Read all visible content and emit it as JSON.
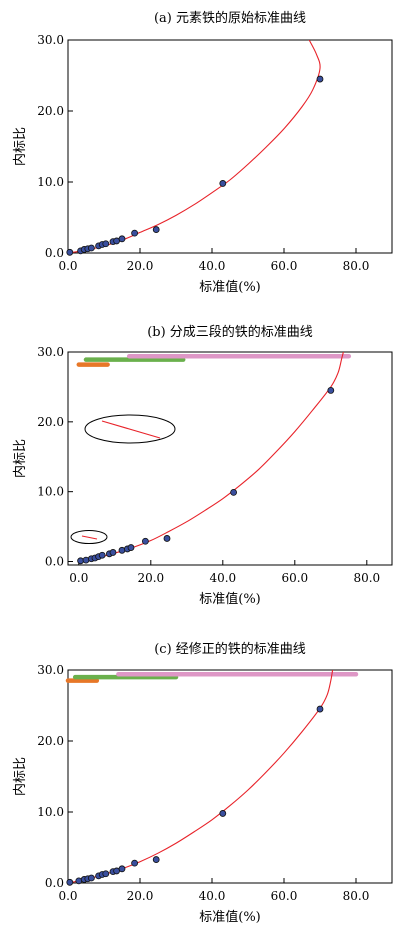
{
  "chart_data": [
    {
      "type": "scatter",
      "title": "(a) 元素铁的原始标准曲线",
      "xlabel": "标准值(%)",
      "ylabel": "内标比",
      "xlim": [
        0,
        90
      ],
      "ylim": [
        0,
        30
      ],
      "x_ticks": [
        "0.0",
        "20.0",
        "40.0",
        "60.0",
        "80.0"
      ],
      "y_ticks": [
        "0.0",
        "10.0",
        "20.0",
        "30.0"
      ],
      "series": [
        {
          "points": [
            [
              0.5,
              0.1
            ],
            [
              3.5,
              0.3
            ],
            [
              4.5,
              0.5
            ],
            [
              5.5,
              0.6
            ],
            [
              6.5,
              0.7
            ],
            [
              8.5,
              1.0
            ],
            [
              9.5,
              1.2
            ],
            [
              10.5,
              1.3
            ],
            [
              12.5,
              1.6
            ],
            [
              13.5,
              1.7
            ],
            [
              15,
              2.0
            ],
            [
              18.5,
              2.8
            ],
            [
              24.5,
              3.3
            ],
            [
              43,
              9.8
            ],
            [
              70,
              24.5
            ]
          ]
        }
      ],
      "fit_curve": [
        [
          0,
          0
        ],
        [
          5,
          0.4
        ],
        [
          10,
          1.0
        ],
        [
          15,
          1.8
        ],
        [
          20,
          2.9
        ],
        [
          25,
          4.0
        ],
        [
          30,
          5.3
        ],
        [
          35,
          6.8
        ],
        [
          40,
          8.5
        ],
        [
          45,
          10.3
        ],
        [
          50,
          12.5
        ],
        [
          55,
          14.9
        ],
        [
          60,
          17.5
        ],
        [
          65,
          20.6
        ],
        [
          68,
          23.0
        ],
        [
          70,
          26.0
        ],
        [
          69,
          28.0
        ],
        [
          67,
          30.0
        ]
      ],
      "highlight_bars": [],
      "annotations": []
    },
    {
      "type": "scatter",
      "title": "(b) 分成三段的铁的标准曲线",
      "xlabel": "标准值(%)",
      "ylabel": "内标比",
      "xlim": [
        -3,
        87
      ],
      "ylim": [
        -0.5,
        30
      ],
      "x_ticks": [
        "0.0",
        "20.0",
        "40.0",
        "60.0",
        "80.0"
      ],
      "y_ticks": [
        "0.0",
        "10.0",
        "20.0",
        "30.0"
      ],
      "series": [
        {
          "points": [
            [
              0.5,
              0.1
            ],
            [
              2,
              0.2
            ],
            [
              3.5,
              0.4
            ],
            [
              4.5,
              0.5
            ],
            [
              5.5,
              0.7
            ],
            [
              6.5,
              0.9
            ],
            [
              8.5,
              1.1
            ],
            [
              9.5,
              1.3
            ],
            [
              12,
              1.6
            ],
            [
              13.5,
              1.8
            ],
            [
              14.5,
              2.0
            ],
            [
              18.5,
              2.9
            ],
            [
              24.5,
              3.3
            ],
            [
              43,
              9.9
            ],
            [
              70,
              24.5
            ]
          ]
        }
      ],
      "fit_curve": [
        [
          0,
          0
        ],
        [
          5,
          0.5
        ],
        [
          10,
          1.2
        ],
        [
          15,
          2.0
        ],
        [
          20,
          3.0
        ],
        [
          25,
          4.3
        ],
        [
          30,
          5.7
        ],
        [
          35,
          7.3
        ],
        [
          40,
          9.0
        ],
        [
          45,
          11.0
        ],
        [
          50,
          13.2
        ],
        [
          55,
          15.8
        ],
        [
          60,
          18.6
        ],
        [
          65,
          21.7
        ],
        [
          70,
          25.0
        ],
        [
          72,
          27.0
        ],
        [
          73,
          29.0
        ],
        [
          73.5,
          30.0
        ]
      ],
      "highlight_bars": [
        {
          "color": "#e77728",
          "from": 0,
          "to": 8,
          "y": 28.2
        },
        {
          "color": "#6ab04c",
          "from": 2,
          "to": 29,
          "y": 28.9
        },
        {
          "color": "#de97c6",
          "from": 14,
          "to": 75,
          "y": 29.4
        }
      ],
      "annotations": [
        "ellipse-large",
        "ellipse-small"
      ]
    },
    {
      "type": "scatter",
      "title": "(c) 经修正的铁的标准曲线",
      "xlabel": "标准值(%)",
      "ylabel": "内标比",
      "xlim": [
        0,
        90
      ],
      "ylim": [
        0,
        30
      ],
      "x_ticks": [
        "0.0",
        "20.0",
        "40.0",
        "60.0",
        "80.0"
      ],
      "y_ticks": [
        "0.0",
        "10.0",
        "20.0",
        "30.0"
      ],
      "series": [
        {
          "points": [
            [
              0.5,
              0.1
            ],
            [
              3,
              0.3
            ],
            [
              4.5,
              0.5
            ],
            [
              5.5,
              0.6
            ],
            [
              6.5,
              0.7
            ],
            [
              8.5,
              1.0
            ],
            [
              9.5,
              1.2
            ],
            [
              10.5,
              1.3
            ],
            [
              12.5,
              1.6
            ],
            [
              13.5,
              1.7
            ],
            [
              15,
              2.0
            ],
            [
              18.5,
              2.8
            ],
            [
              24.5,
              3.3
            ],
            [
              43,
              9.8
            ],
            [
              70,
              24.5
            ]
          ]
        }
      ],
      "fit_curve": [
        [
          0,
          0
        ],
        [
          5,
          0.5
        ],
        [
          10,
          1.2
        ],
        [
          15,
          2.0
        ],
        [
          20,
          3.0
        ],
        [
          25,
          4.2
        ],
        [
          30,
          5.6
        ],
        [
          35,
          7.2
        ],
        [
          40,
          8.9
        ],
        [
          45,
          10.9
        ],
        [
          50,
          13.1
        ],
        [
          55,
          15.6
        ],
        [
          60,
          18.3
        ],
        [
          65,
          21.3
        ],
        [
          70,
          24.6
        ],
        [
          72,
          26.5
        ],
        [
          73,
          28.5
        ],
        [
          73.5,
          30.0
        ]
      ],
      "highlight_bars": [
        {
          "color": "#e77728",
          "from": 0,
          "to": 8,
          "y": 28.5
        },
        {
          "color": "#6ab04c",
          "from": 2,
          "to": 30,
          "y": 29.0
        },
        {
          "color": "#de97c6",
          "from": 14,
          "to": 80,
          "y": 29.4
        }
      ],
      "annotations": []
    }
  ]
}
